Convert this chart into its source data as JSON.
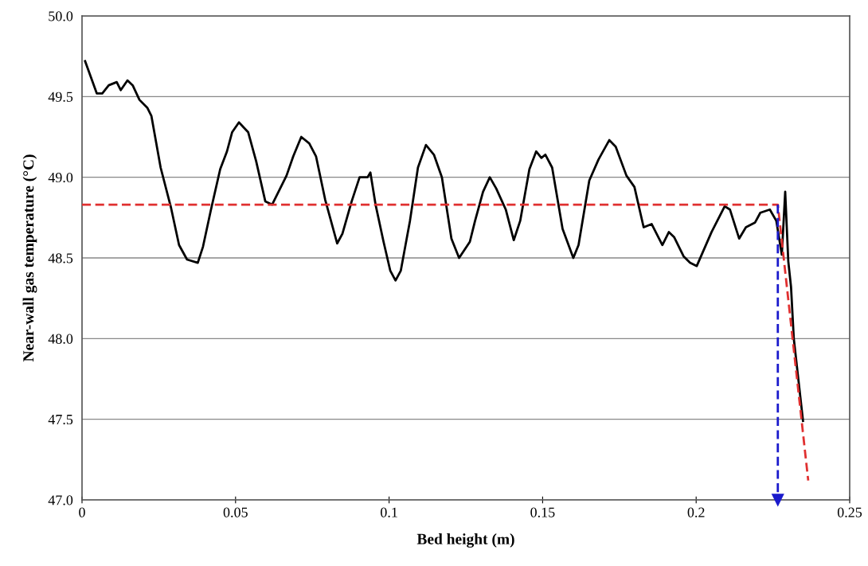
{
  "chart_data": {
    "type": "line",
    "xlabel": "Bed height (m)",
    "ylabel": "Near-wall gas temperature (°C)",
    "xlim": [
      0,
      0.25
    ],
    "xticks": [
      0,
      0.05,
      0.1,
      0.15,
      0.2,
      0.25
    ],
    "ylim": [
      47.0,
      50.0
    ],
    "yticks": [
      {
        "value": 47.0,
        "label": "47.0"
      },
      {
        "value": 47.5,
        "label": "47.5"
      },
      {
        "value": 48.0,
        "label": "48.0"
      },
      {
        "value": 48.5,
        "label": "48.5"
      },
      {
        "value": 49.0,
        "label": "49.0"
      },
      {
        "value": 49.5,
        "label": "49.5"
      },
      {
        "value": 50.0,
        "label": "50.0"
      }
    ],
    "grid": "y",
    "marker": "none",
    "series": [
      {
        "color": "#000000",
        "line_style": "solid",
        "x": [
          0.001,
          0.0048,
          0.0066,
          0.0087,
          0.0113,
          0.0126,
          0.0148,
          0.0165,
          0.0187,
          0.0213,
          0.0226,
          0.0256,
          0.029,
          0.0316,
          0.0342,
          0.0377,
          0.0394,
          0.042,
          0.045,
          0.0472,
          0.0489,
          0.0511,
          0.0541,
          0.0567,
          0.0597,
          0.0619,
          0.0666,
          0.0688,
          0.0714,
          0.074,
          0.0762,
          0.0792,
          0.0831,
          0.0848,
          0.0878,
          0.0904,
          0.093,
          0.0939,
          0.0956,
          0.0982,
          0.1004,
          0.1021,
          0.1038,
          0.1068,
          0.1094,
          0.112,
          0.1146,
          0.1172,
          0.1203,
          0.1228,
          0.1263,
          0.128,
          0.1306,
          0.1328,
          0.1349,
          0.138,
          0.1406,
          0.1427,
          0.1457,
          0.1479,
          0.1496,
          0.1509,
          0.1531,
          0.1565,
          0.16,
          0.1617,
          0.1652,
          0.1682,
          0.1717,
          0.1738,
          0.1773,
          0.1799,
          0.1829,
          0.1855,
          0.189,
          0.1911,
          0.1928,
          0.1959,
          0.198,
          0.2002,
          0.205,
          0.2093,
          0.211,
          0.214,
          0.2162,
          0.2192,
          0.2209,
          0.224,
          0.2261,
          0.2279,
          0.229,
          0.23,
          0.2309,
          0.2318,
          0.2348
        ],
        "values": [
          49.72,
          49.52,
          49.52,
          49.57,
          49.59,
          49.54,
          49.6,
          49.57,
          49.48,
          49.43,
          49.38,
          49.06,
          48.81,
          48.58,
          48.49,
          48.47,
          48.57,
          48.8,
          49.05,
          49.16,
          49.28,
          49.34,
          49.28,
          49.1,
          48.85,
          48.83,
          49.01,
          49.13,
          49.25,
          49.21,
          49.13,
          48.86,
          48.59,
          48.65,
          48.85,
          49.0,
          49.0,
          49.03,
          48.83,
          48.6,
          48.42,
          48.36,
          48.42,
          48.73,
          49.06,
          49.2,
          49.14,
          49.0,
          48.62,
          48.5,
          48.6,
          48.73,
          48.91,
          49.0,
          48.93,
          48.8,
          48.61,
          48.73,
          49.05,
          49.16,
          49.12,
          49.14,
          49.06,
          48.68,
          48.5,
          48.58,
          48.98,
          49.11,
          49.23,
          49.19,
          49.01,
          48.94,
          48.69,
          48.71,
          48.58,
          48.66,
          48.63,
          48.51,
          48.47,
          48.45,
          48.66,
          48.82,
          48.8,
          48.62,
          48.69,
          48.72,
          48.78,
          48.8,
          48.73,
          48.52,
          48.91,
          48.48,
          48.32,
          48.0,
          47.49
        ]
      },
      {
        "color": "#e03030",
        "line_style": "dashed",
        "x": [
          0,
          0.2266,
          0.2365
        ],
        "values": [
          48.83,
          48.83,
          47.12
        ]
      },
      {
        "color": "#1a1acc",
        "line_style": "dashed",
        "type": "line",
        "marker": "triangle",
        "x": [
          0.2266,
          0.2266
        ],
        "values": [
          48.83,
          47.0
        ]
      }
    ]
  }
}
